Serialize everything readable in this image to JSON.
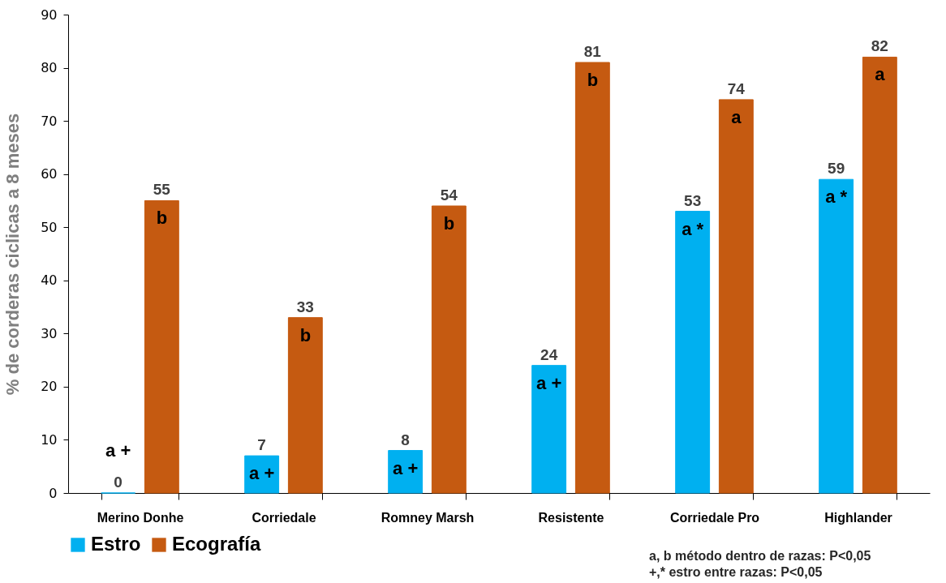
{
  "chart_data": {
    "type": "bar",
    "ylabel": "% de corderas ciclicas a 8 meses",
    "categories": [
      "Merino Donhe",
      "Corriedale",
      "Romney Marsh",
      "Resistente",
      "Corriedale Pro",
      "Highlander"
    ],
    "series": [
      {
        "name": "Estro",
        "color": "#00b0f0",
        "values": [
          0,
          7,
          8,
          24,
          53,
          59
        ]
      },
      {
        "name": "Ecografía",
        "color": "#c55a11",
        "values": [
          55,
          33,
          54,
          81,
          74,
          82
        ]
      }
    ],
    "ylim": [
      0,
      90
    ],
    "yticks": [
      0,
      10,
      20,
      30,
      40,
      50,
      60,
      70,
      80,
      90
    ],
    "grid": false,
    "legend": "bottom",
    "data_labels": true,
    "annotations": [
      "a +",
      "b",
      "a +",
      "b",
      "a +",
      "b",
      "a +",
      "b",
      "a *",
      "a",
      "a *",
      "a",
      "a, b método dentro de razas: P<0,05",
      "+,* estro entre razas: P<0,05"
    ]
  }
}
